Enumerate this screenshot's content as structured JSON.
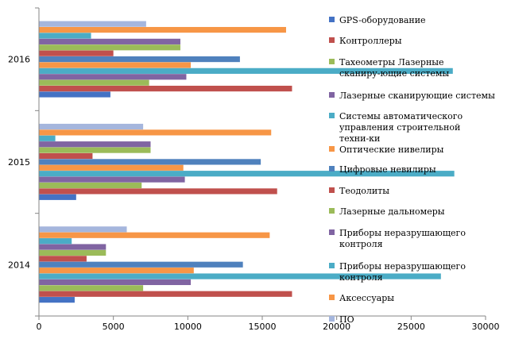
{
  "chart_data": {
    "type": "bar",
    "orientation": "horizontal",
    "categories": [
      "2014",
      "2015",
      "2016"
    ],
    "xlim": [
      0,
      30000
    ],
    "xticks": [
      "0",
      "5000",
      "10000",
      "15000",
      "20000",
      "25000",
      "30000"
    ],
    "grid": false,
    "legend_position": "right",
    "series": [
      {
        "name": "GPS-оборудование",
        "color": "#4472C4",
        "values": [
          2400,
          2500,
          4800
        ]
      },
      {
        "name": "Контроллеры",
        "color": "#C0504D",
        "values": [
          17000,
          16000,
          17000
        ]
      },
      {
        "name": "Тахеометры Лазерные сканиру-ющие системы",
        "color": "#9BBB59",
        "values": [
          7000,
          6900,
          7400
        ]
      },
      {
        "name": "Лазерные сканирующие системы",
        "color": "#8064A2",
        "values": [
          10200,
          9800,
          9900
        ]
      },
      {
        "name": "Системы автоматического управления строительной техни-ки",
        "color": "#4BACC6",
        "values": [
          27000,
          27900,
          27800
        ]
      },
      {
        "name": "Оптические нивелиры",
        "color": "#F79646",
        "values": [
          10400,
          9700,
          10200
        ]
      },
      {
        "name": "Цифровые невилиры",
        "color": "#4F81BD",
        "values": [
          13700,
          14900,
          13500
        ]
      },
      {
        "name": "Теодолиты",
        "color": "#C0504D",
        "values": [
          3200,
          3600,
          5000
        ]
      },
      {
        "name": "Лазерные дальномеры",
        "color": "#9BBB59",
        "values": [
          4500,
          7500,
          9500
        ]
      },
      {
        "name": "Приборы неразрушающего контроля",
        "color": "#8064A2",
        "values": [
          4500,
          7500,
          9500
        ]
      },
      {
        "name": "Приборы неразрушающего контроля",
        "color": "#4BACC6",
        "values": [
          2200,
          1100,
          3500
        ]
      },
      {
        "name": "Аксессуары",
        "color": "#F79646",
        "values": [
          15500,
          15600,
          16600
        ]
      },
      {
        "name": "ПО",
        "color": "#A5B6DD",
        "values": [
          5900,
          7000,
          7200
        ]
      }
    ]
  }
}
